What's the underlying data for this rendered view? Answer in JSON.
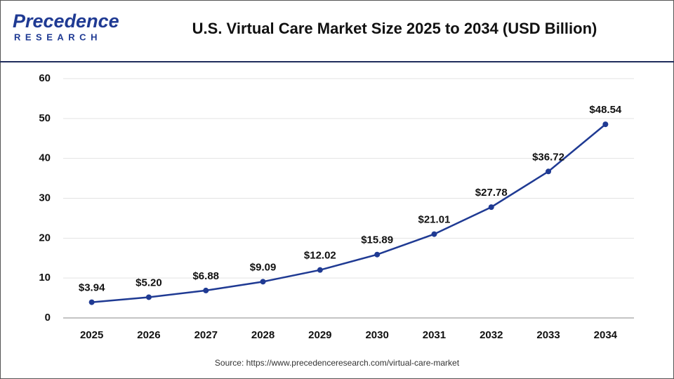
{
  "logo": {
    "name": "Precedence",
    "tagline": "RESEARCH"
  },
  "chart_data": {
    "type": "line",
    "title": "U.S. Virtual Care Market Size 2025 to 2034 (USD Billion)",
    "categories": [
      "2025",
      "2026",
      "2027",
      "2028",
      "2029",
      "2030",
      "2031",
      "2032",
      "2033",
      "2034"
    ],
    "series": [
      {
        "name": "U.S. Virtual Care Market Size",
        "color": "#1f3a93",
        "values": [
          3.94,
          5.2,
          6.88,
          9.09,
          12.02,
          15.89,
          21.01,
          27.78,
          36.72,
          48.54
        ],
        "value_labels": [
          "$3.94",
          "$5.20",
          "$6.88",
          "$9.09",
          "$12.02",
          "$15.89",
          "$21.01",
          "$27.78",
          "$36.72",
          "$48.54"
        ]
      }
    ],
    "ylim": [
      0,
      60
    ],
    "yticks": [
      0,
      10,
      20,
      30,
      40,
      50,
      60
    ],
    "grid": true,
    "source": "Source: https://www.precedenceresearch.com/virtual-care-market"
  }
}
